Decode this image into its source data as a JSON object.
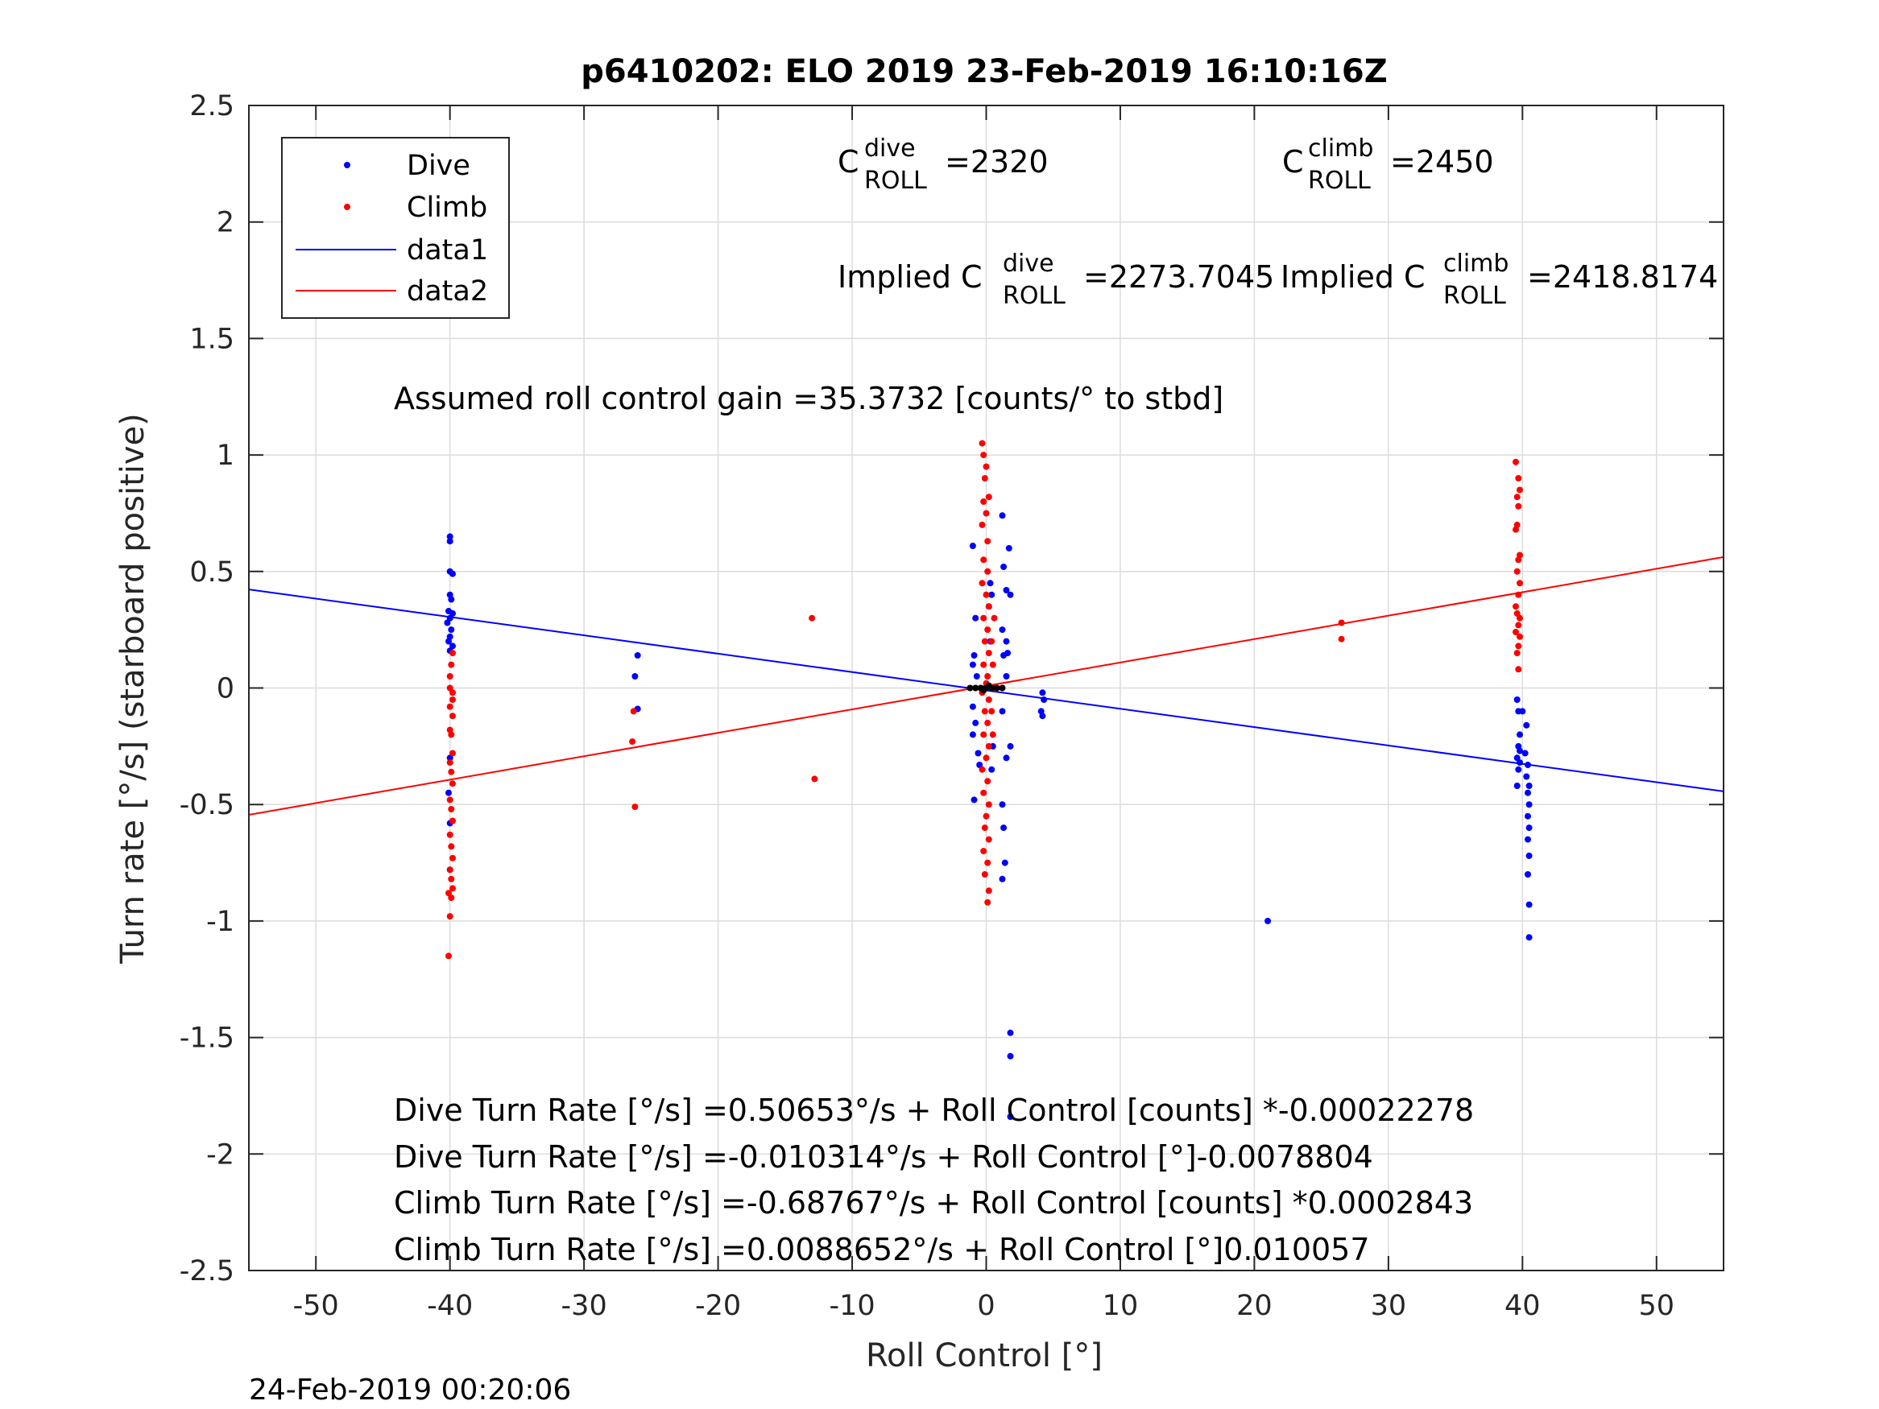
{
  "chart_data": {
    "type": "scatter",
    "title": "p6410202: ELO 2019 23-Feb-2019 16:10:16Z",
    "xlabel": "Roll Control [°]",
    "ylabel": "Turn rate [°/s] (starboard positive)",
    "xlim": [
      -55,
      55
    ],
    "ylim": [
      -2.5,
      2.5
    ],
    "xticks": [
      -50,
      -40,
      -30,
      -20,
      -10,
      0,
      10,
      20,
      30,
      40,
      50
    ],
    "yticks": [
      -2.5,
      -2,
      -1.5,
      -1,
      -0.5,
      0,
      0.5,
      1,
      1.5,
      2,
      2.5
    ],
    "xtick_labels": [
      "-50",
      "-40",
      "-30",
      "-20",
      "-10",
      "0",
      "10",
      "20",
      "30",
      "40",
      "50"
    ],
    "ytick_labels": [
      "-2.5",
      "-2",
      "-1.5",
      "-1",
      "-0.5",
      "0",
      "0.5",
      "1",
      "1.5",
      "2",
      "2.5"
    ],
    "grid": true,
    "legend_position": "top-left",
    "legend": [
      "Dive",
      "Climb",
      "data1",
      "data2"
    ],
    "colors": {
      "dive": "#0000ff",
      "climb": "#ff0000",
      "zero": "#000000"
    },
    "series": [
      {
        "name": "Dive",
        "kind": "points",
        "color": "#0000ff",
        "points": [
          [
            -40,
            0.65
          ],
          [
            -40,
            0.63
          ],
          [
            -40,
            0.5
          ],
          [
            -39.8,
            0.49
          ],
          [
            -40,
            0.4
          ],
          [
            -39.9,
            0.38
          ],
          [
            -40.1,
            0.33
          ],
          [
            -39.8,
            0.32
          ],
          [
            -40,
            0.3
          ],
          [
            -40.2,
            0.28
          ],
          [
            -39.9,
            0.25
          ],
          [
            -40,
            0.22
          ],
          [
            -40.1,
            0.2
          ],
          [
            -39.8,
            0.18
          ],
          [
            -40,
            0.16
          ],
          [
            -40,
            -0.3
          ],
          [
            -40.1,
            -0.45
          ],
          [
            -40,
            -0.58
          ],
          [
            -40,
            -0.78
          ],
          [
            -26,
            0.14
          ],
          [
            -26.2,
            0.05
          ],
          [
            -26,
            -0.09
          ],
          [
            -1,
            0.61
          ],
          [
            -0.8,
            0.3
          ],
          [
            -0.9,
            0.14
          ],
          [
            -1,
            0.1
          ],
          [
            -0.7,
            0.05
          ],
          [
            -1,
            -0.08
          ],
          [
            -0.8,
            -0.15
          ],
          [
            -1,
            -0.2
          ],
          [
            -0.6,
            -0.28
          ],
          [
            -0.9,
            -0.48
          ],
          [
            -0.5,
            -0.33
          ],
          [
            0.3,
            0.45
          ],
          [
            0.4,
            0.4
          ],
          [
            0.2,
            0.35
          ],
          [
            0.3,
            0.2
          ],
          [
            0.5,
            -0.25
          ],
          [
            0.4,
            -0.35
          ],
          [
            1.2,
            0.74
          ],
          [
            1.3,
            0.52
          ],
          [
            1.5,
            0.42
          ],
          [
            1.2,
            0.25
          ],
          [
            1.5,
            0.05
          ],
          [
            1.2,
            -0.1
          ],
          [
            1.5,
            -0.3
          ],
          [
            1.2,
            -0.5
          ],
          [
            1.3,
            -0.6
          ],
          [
            1.4,
            -0.75
          ],
          [
            1.2,
            -0.82
          ],
          [
            1.5,
            0.2
          ],
          [
            1.3,
            0.14
          ],
          [
            1.7,
            0.6
          ],
          [
            1.8,
            0.4
          ],
          [
            1.6,
            0.15
          ],
          [
            1.8,
            -0.25
          ],
          [
            4.2,
            -0.02
          ],
          [
            4.3,
            -0.05
          ],
          [
            4.1,
            -0.1
          ],
          [
            4.2,
            -0.12
          ],
          [
            1.8,
            -1.48
          ],
          [
            1.8,
            -1.58
          ],
          [
            1.8,
            -1.84
          ],
          [
            21,
            -1.0
          ],
          [
            39.6,
            -0.05
          ],
          [
            39.7,
            -0.1
          ],
          [
            39.8,
            -0.2
          ],
          [
            39.7,
            -0.25
          ],
          [
            39.8,
            -0.27
          ],
          [
            39.6,
            -0.3
          ],
          [
            39.8,
            -0.32
          ],
          [
            39.7,
            -0.35
          ],
          [
            39.6,
            -0.42
          ],
          [
            40,
            -0.1
          ],
          [
            40.3,
            -0.16
          ],
          [
            40.2,
            -0.28
          ],
          [
            40.4,
            -0.33
          ],
          [
            40.5,
            -0.42
          ],
          [
            40.4,
            -0.45
          ],
          [
            40.5,
            -0.5
          ],
          [
            40.4,
            -0.55
          ],
          [
            40.5,
            -0.6
          ],
          [
            40.4,
            -0.65
          ],
          [
            40.5,
            -0.72
          ],
          [
            40.4,
            -0.8
          ],
          [
            40.5,
            -0.93
          ],
          [
            40.5,
            -1.07
          ],
          [
            40.3,
            -0.38
          ]
        ]
      },
      {
        "name": "Climb",
        "kind": "points",
        "color": "#ff0000",
        "points": [
          [
            -39.8,
            0.15
          ],
          [
            -39.9,
            0.1
          ],
          [
            -40,
            0.05
          ],
          [
            -39.8,
            -0.05
          ],
          [
            -40,
            -0.08
          ],
          [
            -39.8,
            -0.12
          ],
          [
            -40,
            -0.18
          ],
          [
            -39.9,
            -0.2
          ],
          [
            -39.8,
            -0.28
          ],
          [
            -40,
            -0.32
          ],
          [
            -39.9,
            -0.36
          ],
          [
            -39.8,
            -0.41
          ],
          [
            -40,
            -0.48
          ],
          [
            -39.9,
            -0.52
          ],
          [
            -39.8,
            -0.57
          ],
          [
            -40,
            -0.63
          ],
          [
            -39.9,
            -0.68
          ],
          [
            -39.8,
            -0.73
          ],
          [
            -40,
            -0.78
          ],
          [
            -39.9,
            -0.82
          ],
          [
            -39.8,
            -0.86
          ],
          [
            -40.1,
            -0.88
          ],
          [
            -39.9,
            -0.9
          ],
          [
            -40,
            -0.98
          ],
          [
            -40.1,
            -1.15
          ],
          [
            -40,
            0.0
          ],
          [
            -39.8,
            -0.02
          ],
          [
            -26.3,
            -0.1
          ],
          [
            -26.4,
            -0.23
          ],
          [
            -26.2,
            -0.51
          ],
          [
            -13,
            0.3
          ],
          [
            -12.8,
            -0.39
          ],
          [
            26.5,
            0.28
          ],
          [
            26.5,
            0.21
          ],
          [
            -0.3,
            1.05
          ],
          [
            -0.2,
            1.0
          ],
          [
            0,
            0.95
          ],
          [
            -0.1,
            0.9
          ],
          [
            0.2,
            0.82
          ],
          [
            -0.2,
            0.8
          ],
          [
            0,
            0.75
          ],
          [
            -0.3,
            0.7
          ],
          [
            0.1,
            0.63
          ],
          [
            -0.2,
            0.55
          ],
          [
            0.1,
            0.5
          ],
          [
            -0.3,
            0.45
          ],
          [
            0,
            0.4
          ],
          [
            0.2,
            0.35
          ],
          [
            -0.2,
            0.3
          ],
          [
            0.1,
            0.25
          ],
          [
            -0.1,
            0.2
          ],
          [
            0.2,
            0.15
          ],
          [
            -0.2,
            0.1
          ],
          [
            0.1,
            0.05
          ],
          [
            0,
            0.02
          ],
          [
            -0.3,
            -0.02
          ],
          [
            0.2,
            -0.05
          ],
          [
            -0.1,
            -0.1
          ],
          [
            0.1,
            -0.15
          ],
          [
            -0.2,
            -0.2
          ],
          [
            0.2,
            -0.25
          ],
          [
            0,
            -0.3
          ],
          [
            -0.3,
            -0.35
          ],
          [
            0.1,
            -0.4
          ],
          [
            -0.2,
            -0.45
          ],
          [
            0.2,
            -0.5
          ],
          [
            0,
            -0.55
          ],
          [
            -0.1,
            -0.6
          ],
          [
            0.2,
            -0.65
          ],
          [
            -0.2,
            -0.7
          ],
          [
            0.1,
            -0.75
          ],
          [
            -0.1,
            -0.8
          ],
          [
            0.2,
            -0.87
          ],
          [
            0.1,
            -0.92
          ],
          [
            0.4,
            0.2
          ],
          [
            0.5,
            0.1
          ],
          [
            0.4,
            -0.1
          ],
          [
            0.5,
            -0.2
          ],
          [
            0.6,
            0.3
          ],
          [
            0.7,
            0.0
          ],
          [
            39.5,
            0.97
          ],
          [
            39.7,
            0.9
          ],
          [
            39.8,
            0.85
          ],
          [
            39.6,
            0.82
          ],
          [
            39.7,
            0.78
          ],
          [
            39.6,
            0.7
          ],
          [
            39.5,
            0.68
          ],
          [
            39.8,
            0.57
          ],
          [
            39.7,
            0.55
          ],
          [
            39.6,
            0.5
          ],
          [
            39.8,
            0.45
          ],
          [
            39.7,
            0.4
          ],
          [
            39.5,
            0.35
          ],
          [
            39.6,
            0.32
          ],
          [
            39.8,
            0.3
          ],
          [
            39.7,
            0.27
          ],
          [
            39.5,
            0.24
          ],
          [
            39.8,
            0.22
          ],
          [
            39.7,
            0.18
          ],
          [
            39.6,
            0.15
          ],
          [
            39.7,
            0.08
          ]
        ]
      },
      {
        "name": "",
        "kind": "points",
        "color": "#000000",
        "points": [
          [
            -1.2,
            0.0
          ],
          [
            -0.8,
            0.0
          ],
          [
            -0.4,
            0.0
          ],
          [
            0,
            0.0
          ],
          [
            0.4,
            0.0
          ],
          [
            0.8,
            0.0
          ],
          [
            1.2,
            0.0
          ],
          [
            0.2,
            0.01
          ],
          [
            -0.2,
            -0.01
          ]
        ]
      },
      {
        "name": "data1",
        "kind": "line",
        "color": "#0000ff",
        "x": [
          -55,
          55
        ],
        "y": [
          0.4231,
          -0.4437
        ]
      },
      {
        "name": "data2",
        "kind": "line",
        "color": "#ff0000",
        "x": [
          -55,
          55
        ],
        "y": [
          -0.5443,
          0.562
        ]
      }
    ]
  },
  "annotations": {
    "c_dive_main": "C",
    "c_dive_sup": "dive",
    "c_dive_sub": "ROLL",
    "c_dive_value": "=2320",
    "c_climb_main": "C",
    "c_climb_sup": "climb",
    "c_climb_sub": "ROLL",
    "c_climb_value": "=2450",
    "implied_dive_main": "Implied C",
    "implied_dive_sup": "dive",
    "implied_dive_sub": "ROLL",
    "implied_dive_value": "=2273.7045",
    "implied_climb_main": "Implied C",
    "implied_climb_sup": "climb",
    "implied_climb_sub": "ROLL",
    "implied_climb_value": "=2418.8174",
    "gain": "Assumed roll control gain =35.3732 [counts/° to stbd]",
    "fit1": "Dive Turn Rate [°/s] =0.50653°/s + Roll Control [counts] *-0.00022278",
    "fit2": "Dive Turn Rate [°/s] =-0.010314°/s + Roll Control [°]-0.0078804",
    "fit3": "Climb Turn Rate [°/s] =-0.68767°/s + Roll Control [counts] *0.0002843",
    "fit4": "Climb Turn Rate [°/s] =0.0088652°/s + Roll Control [°]0.010057"
  },
  "timestamp": "24-Feb-2019 00:20:06"
}
